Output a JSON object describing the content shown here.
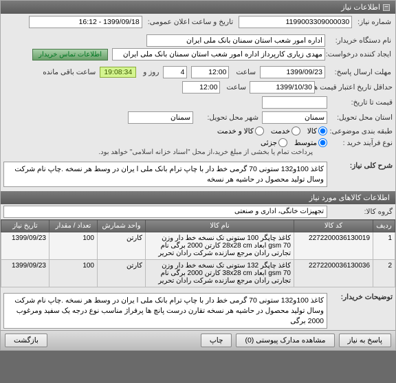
{
  "panel_title": "اطلاعات نیاز",
  "top": {
    "need_no_label": "شماره نیاز:",
    "need_no": "1199003309000030",
    "announce_label": "تاریخ و ساعت اعلان عمومی:",
    "announce": "1399/09/18 - 16:12"
  },
  "buyer": {
    "org_label": "نام دستگاه خریدار:",
    "org": "اداره امور شعب استان سمنان بانک ملی ایران",
    "creator_label": "ایجاد کننده درخواست:",
    "creator": "مهدی زیاری کارپرداز اداره امور شعب استان سمنان بانک ملی ایران",
    "contact_btn": "اطلاعات تماس خریدار"
  },
  "deadline": {
    "send_label": "مهلت ارسال پاسخ:",
    "send_date": "1399/09/23",
    "time_lbl": "ساعت",
    "send_time": "12:00",
    "remain_pre": "",
    "days": "4",
    "days_lbl": "روز و",
    "timer": "19:08:34",
    "remain_lbl": "ساعت باقی مانده"
  },
  "credit": {
    "label": "حداقل تاریخ اعتبار قیمت ها:",
    "date": "1399/10/30",
    "time_lbl": "ساعت",
    "time": "12:00"
  },
  "until": {
    "label": "قیمت تا تاریخ:",
    "val": ""
  },
  "deliver": {
    "prov_label": "استان محل تحویل:",
    "prov": "سمنان",
    "city_label": "شهر محل تحویل:",
    "city": "سمنان"
  },
  "budget": {
    "label": "طبقه بندی موضوعی:",
    "opt_goods": "کالا",
    "opt_service": "خدمت",
    "opt_goods_service": "کالا و خدمت"
  },
  "process": {
    "label": "نوع فرآیند خرید :",
    "opt_mid": "متوسط",
    "opt_small": "جزئی",
    "note": "پرداخت تمام یا بخشی از مبلغ خرید،از محل \"اسناد خزانه اسلامی\" خواهد بود."
  },
  "main_desc": {
    "label": "شرح کلی نیاز:",
    "text": "کاغذ 100و132 ستونی 70 گرمی خط دار با چاپ ترام بانک ملی ا یران در وسط هر نسخه .چاپ نام شرکت وسال تولید  محصول در حاشیه هر نسخه"
  },
  "items_hdr": "اطلاعات کالاهای مورد نیاز",
  "group": {
    "label": "گروه کالا:",
    "val": "تجهیزات خانگی، اداری و صنعتی"
  },
  "tbl": {
    "cols": [
      "ردیف",
      "کد کالا",
      "نام کالا",
      "واحد شمارش",
      "تعداد / مقدار",
      "تاریخ نیاز"
    ],
    "rows": [
      {
        "idx": "1",
        "code": "2272200036130019",
        "name": "کاغذ چاپگر 100 ستونی تک نسخه خط دار وزن gsm 70 ابعاد 28x28 cm کارتن 2000 برگی نام تجارتی رادان مرجع سازنده شرکت رادان تحریر",
        "unit": "کارتن",
        "qty": "100",
        "date": "1399/09/23"
      },
      {
        "idx": "2",
        "code": "2272200036130036",
        "name": "کاغذ چاپگر 132 ستونی تک نسخه خط دار وزن gsm 70 ابعاد 38x28 cm کارتن 2000 برگی نام تجارتی رادان مرجع سازنده شرکت رادان تحریر",
        "unit": "کارتن",
        "qty": "100",
        "date": "1399/09/23"
      }
    ]
  },
  "long_desc": {
    "label": "توضیحات خریدار:",
    "text": "کاغذ 100و132 ستونی 70 گرمی خط دار با چاپ ترام بانک ملی ا یران در وسط هر نسخه .چاپ نام شرکت وسال تولید  محصول در حاشیه هر نسخه تقارن درست پانچ ها  پرفراژ مناسب  نوع درجه یک سفید ومرغوب 2000 برگی"
  },
  "footer": {
    "reply": "پاسخ به نیاز",
    "attach": "مشاهده مدارک پیوستی  (0)",
    "print": "چاپ",
    "back": "بازگشت"
  }
}
